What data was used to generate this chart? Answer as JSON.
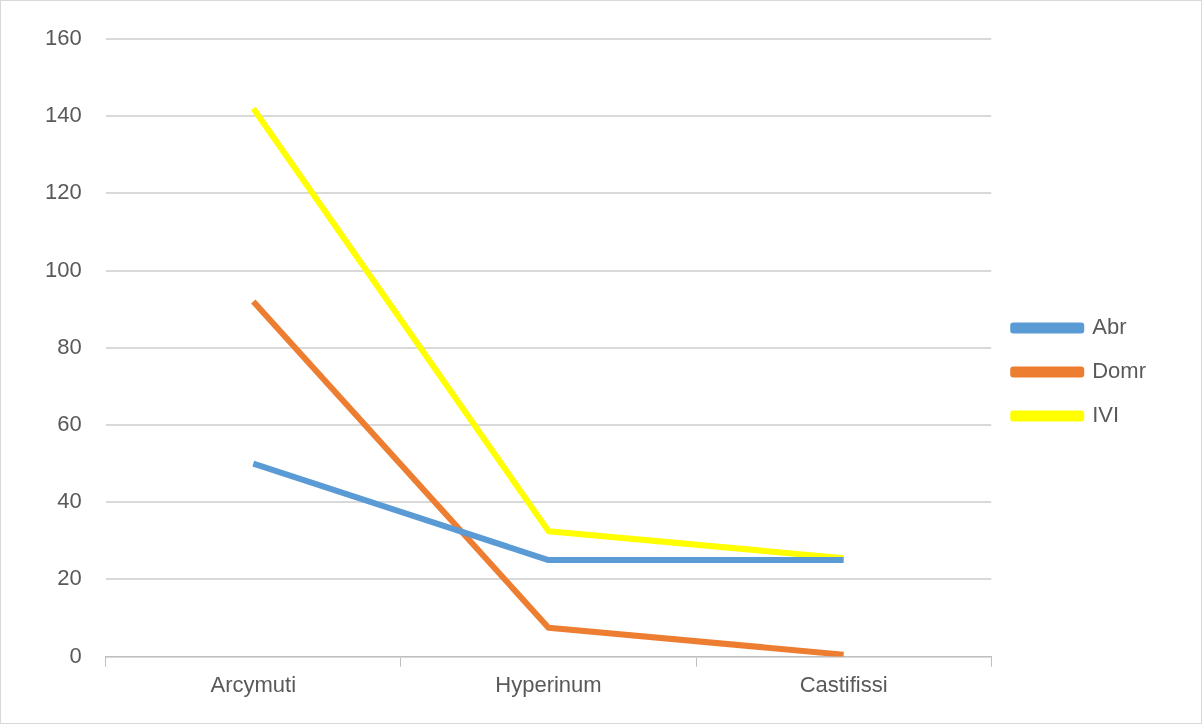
{
  "chart_data": {
    "type": "line",
    "categories": [
      "Arcymuti",
      "Hyperinum",
      "Castifissi"
    ],
    "series": [
      {
        "name": "Abr",
        "color": "#5b9bd5",
        "values": [
          50,
          25,
          25
        ]
      },
      {
        "name": "Domr",
        "color": "#ed7d31",
        "values": [
          92,
          7.5,
          0.5
        ]
      },
      {
        "name": "IVI",
        "color": "#ffff00",
        "values": [
          142,
          32.5,
          25.5
        ]
      }
    ],
    "ylim": [
      0,
      160
    ],
    "yticks": [
      0,
      20,
      40,
      60,
      80,
      100,
      120,
      140,
      160
    ],
    "grid": "y",
    "legend": "right",
    "marker": "none",
    "line_style": "solid"
  }
}
